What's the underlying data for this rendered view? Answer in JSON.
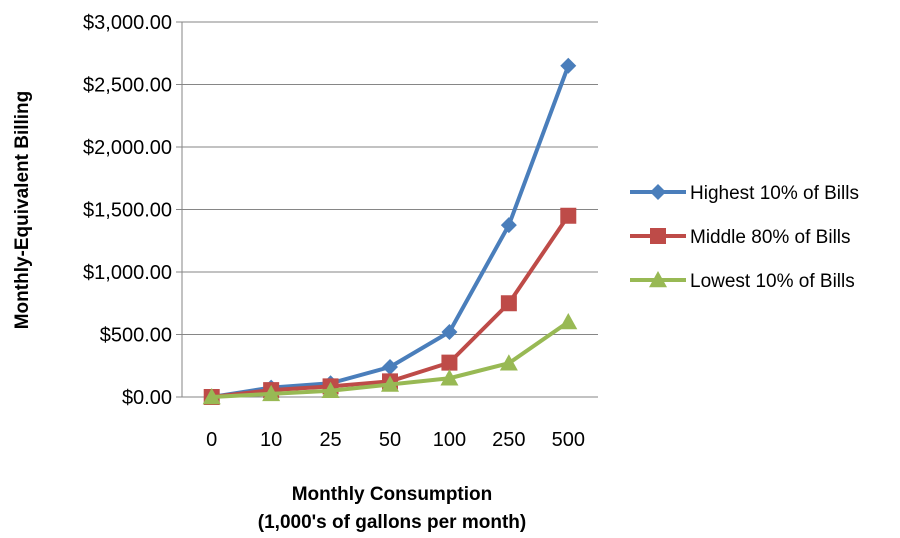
{
  "chart_data": {
    "type": "line",
    "title": "",
    "xlabel_lines": [
      "Monthly Consumption",
      "(1,000's of gallons per month)"
    ],
    "ylabel": "Monthly-Equivalent Billing",
    "categories": [
      "0",
      "10",
      "25",
      "50",
      "100",
      "250",
      "500"
    ],
    "ylim": [
      0,
      3000
    ],
    "yticks": [
      0,
      500,
      1000,
      1500,
      2000,
      2500,
      3000
    ],
    "ytick_labels": [
      "$0.00",
      "$500.00",
      "$1,000.00",
      "$1,500.00",
      "$2,000.00",
      "$2,500.00",
      "$3,000.00"
    ],
    "grid": "horizontal",
    "legend_position": "right",
    "series": [
      {
        "name": "Highest 10% of Bills",
        "color": "#4A7EBB",
        "marker": "diamond",
        "values": [
          0,
          75,
          110,
          240,
          520,
          1375,
          2650
        ]
      },
      {
        "name": "Middle 80% of Bills",
        "color": "#BE4B48",
        "marker": "square",
        "values": [
          0,
          55,
          85,
          125,
          275,
          750,
          1450
        ]
      },
      {
        "name": "Lowest 10% of Bills",
        "color": "#98B954",
        "marker": "triangle",
        "values": [
          0,
          25,
          50,
          100,
          150,
          270,
          600
        ]
      }
    ]
  }
}
